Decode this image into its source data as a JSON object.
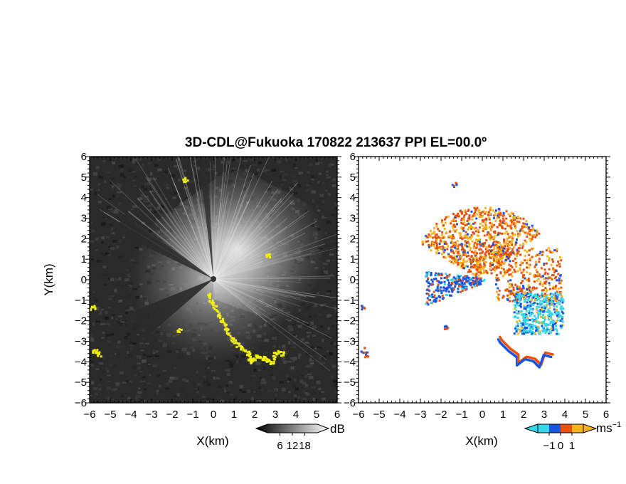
{
  "chart_data": {
    "type": "heatmap",
    "title": "3D-CDL@Fukuoka 170822 213637 PPI EL=00.0º",
    "panels": [
      {
        "name": "reflectivity",
        "xlabel": "X(km)",
        "ylabel": "Y(km)",
        "xlim": [
          -6,
          6
        ],
        "ylim": [
          -6,
          6
        ],
        "x_ticks": [
          "−6",
          "−5",
          "−4",
          "−3",
          "−2",
          "−1",
          "0",
          "1",
          "2",
          "3",
          "4",
          "5",
          "6"
        ],
        "y_ticks": [
          "6",
          "5",
          "4",
          "3",
          "2",
          "1",
          "0",
          "−1",
          "−2",
          "−3",
          "−4",
          "−5",
          "−6"
        ],
        "background": "#2a2a2a",
        "highlight_color": "#f2ef10",
        "colorbar": {
          "unit": "dB",
          "ticks": [
            "6",
            "12",
            "18"
          ],
          "range": [
            0,
            24
          ]
        }
      },
      {
        "name": "doppler-velocity",
        "xlabel": "X(km)",
        "xlim": [
          -6,
          6
        ],
        "ylim": [
          -6,
          6
        ],
        "x_ticks": [
          "−6",
          "−5",
          "−4",
          "−3",
          "−2",
          "−1",
          "0",
          "1",
          "2",
          "3",
          "4",
          "5",
          "6"
        ],
        "y_ticks": [
          "6",
          "5",
          "4",
          "3",
          "2",
          "1",
          "0",
          "−1",
          "−2",
          "−3",
          "−4",
          "−5",
          "−6"
        ],
        "background": "#ffffff",
        "colors": {
          "negative_strong": "#1a55e0",
          "negative_weak": "#35d8e8",
          "positive_weak": "#f7b41f",
          "positive_strong": "#e8520c"
        },
        "colorbar": {
          "unit": "ms",
          "unit_exponent": "−1",
          "ticks": [
            "−1",
            "0",
            "1"
          ],
          "range": [
            -2,
            2
          ]
        }
      }
    ]
  }
}
